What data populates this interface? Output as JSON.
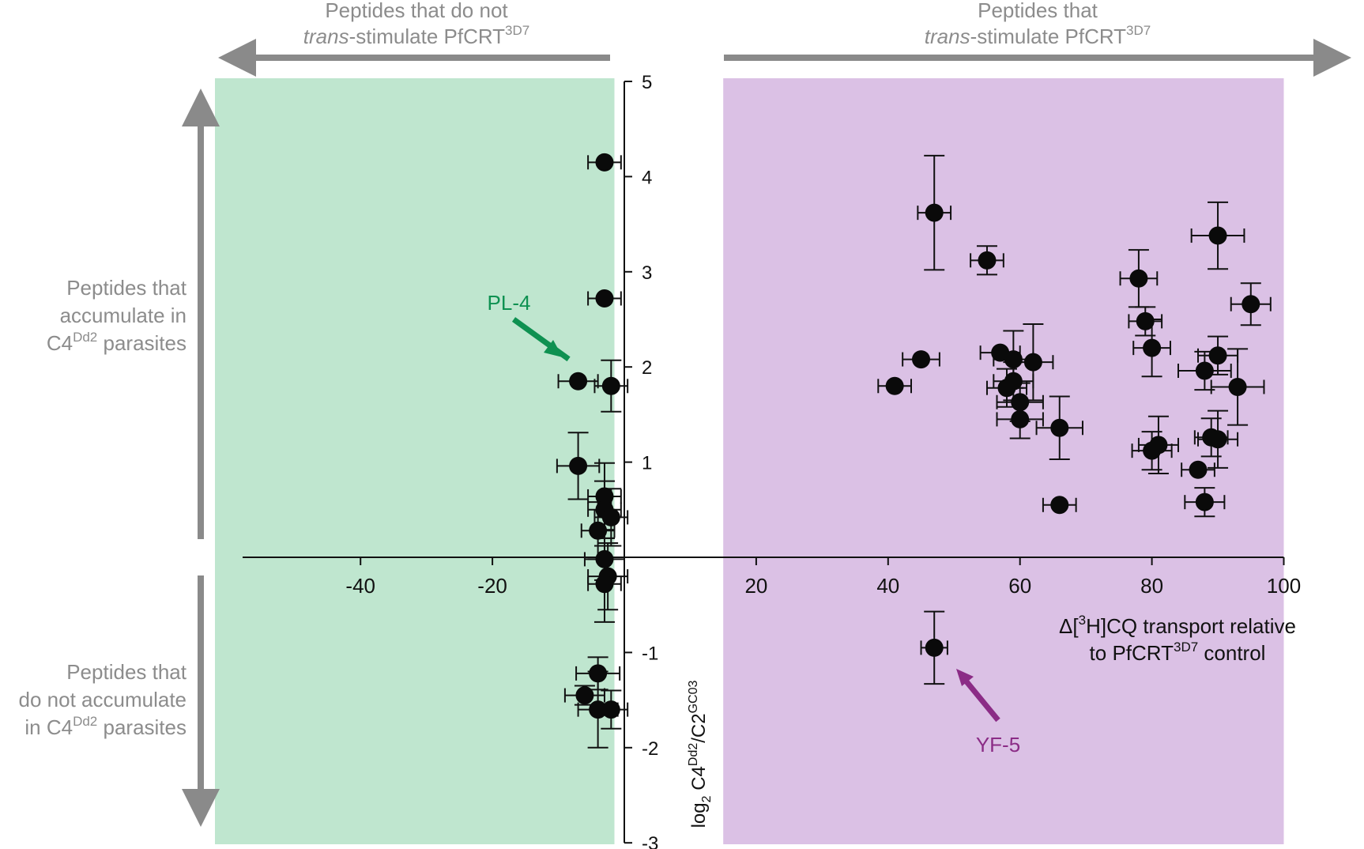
{
  "chart_data": {
    "type": "scatter",
    "title": "",
    "xlabel": {
      "prefix": "Δ[",
      "sup": "3",
      "main": "H]CQ transport relative",
      "line2": "to PfCRT",
      "line2_sup": "3D7",
      "line2_end": " control"
    },
    "ylabel": {
      "base": "log",
      "sub": "2",
      "mid": " C4",
      "sup1": "Dd2",
      "slash": "/C2",
      "sup2": "GC03"
    },
    "xlim": [
      -52,
      100
    ],
    "ylim": [
      -3,
      5
    ],
    "x_ticks": [
      -40,
      -20,
      0,
      20,
      40,
      60,
      80,
      100
    ],
    "x_tick_labels": [
      "-40",
      "-20",
      "",
      "20",
      "40",
      "60",
      "80",
      "100"
    ],
    "y_ticks": [
      -3,
      -2,
      -1,
      1,
      2,
      3,
      4,
      5
    ],
    "y_tick_labels": [
      "-3",
      "-2",
      "-1",
      "1",
      "2",
      "3",
      "4",
      "5"
    ],
    "regions": [
      {
        "name": "no-trans-stimulation",
        "x_range": [
          -52,
          -1.5
        ],
        "color": "#bfe6cf"
      },
      {
        "name": "trans-stimulation",
        "x_range": [
          15,
          100
        ],
        "color": "#dbc1e5"
      }
    ],
    "headers": {
      "left": {
        "line1": "Peptides that do not",
        "line2_italic": "trans",
        "line2": "-stimulate PfCRT",
        "line2_sup": "3D7"
      },
      "right": {
        "line1": "Peptides that",
        "line2_italic": "trans",
        "line2": "-stimulate PfCRT",
        "line2_sup": "3D7"
      }
    },
    "side_labels": {
      "top": [
        "Peptides that",
        "accumulate in",
        "C4",
        "Dd2",
        " parasites"
      ],
      "bottom": [
        "Peptides that",
        "do not accumulate",
        "in C4",
        "Dd2",
        " parasites"
      ]
    },
    "annotations": [
      {
        "label": "PL-4",
        "color": "#0e9151",
        "x": -7,
        "y": 1.85
      },
      {
        "label": "YF-5",
        "color": "#8b2c86",
        "x": 47,
        "y": -0.95
      }
    ],
    "points": [
      {
        "x": -3,
        "y": 4.15,
        "xerr": 2.5,
        "yerr": 0
      },
      {
        "x": -3,
        "y": 2.72,
        "xerr": 2.5,
        "yerr": 0
      },
      {
        "x": -7,
        "y": 1.85,
        "xerr": 3,
        "yerr": 0
      },
      {
        "x": -2,
        "y": 1.8,
        "xerr": 2.5,
        "yerr": 0.27
      },
      {
        "x": -7,
        "y": 0.96,
        "xerr": 3.2,
        "yerr": 0.35
      },
      {
        "x": -3,
        "y": 0.64,
        "xerr": 2.5,
        "yerr": 0.35
      },
      {
        "x": -3,
        "y": 0.5,
        "xerr": 2.5,
        "yerr": 0.3
      },
      {
        "x": -2,
        "y": 0.42,
        "xerr": 2.5,
        "yerr": 0.3
      },
      {
        "x": -4,
        "y": 0.28,
        "xerr": 2.5,
        "yerr": 0.3
      },
      {
        "x": -3,
        "y": -0.02,
        "xerr": 3,
        "yerr": 0.22
      },
      {
        "x": -2.5,
        "y": -0.2,
        "xerr": 3,
        "yerr": 0.35
      },
      {
        "x": -3,
        "y": -0.28,
        "xerr": 2.5,
        "yerr": 0.4
      },
      {
        "x": -4,
        "y": -1.22,
        "xerr": 3.3,
        "yerr": 0.17
      },
      {
        "x": -6,
        "y": -1.45,
        "xerr": 3,
        "yerr": 0.1
      },
      {
        "x": -4,
        "y": -1.6,
        "xerr": 3,
        "yerr": 0.4
      },
      {
        "x": -2,
        "y": -1.6,
        "xerr": 2.5,
        "yerr": 0.2
      },
      {
        "x": 47,
        "y": 3.62,
        "xerr": 2.5,
        "yerr": 0.6
      },
      {
        "x": 55,
        "y": 3.12,
        "xerr": 2.5,
        "yerr": 0.15
      },
      {
        "x": 45,
        "y": 2.08,
        "xerr": 2.8,
        "yerr": 0
      },
      {
        "x": 41,
        "y": 1.8,
        "xerr": 2.5,
        "yerr": 0
      },
      {
        "x": 57,
        "y": 2.15,
        "xerr": 3,
        "yerr": 0
      },
      {
        "x": 59,
        "y": 2.08,
        "xerr": 3,
        "yerr": 0.3
      },
      {
        "x": 62,
        "y": 2.05,
        "xerr": 3,
        "yerr": 0.4
      },
      {
        "x": 58,
        "y": 1.78,
        "xerr": 3,
        "yerr": 0.2
      },
      {
        "x": 59,
        "y": 1.85,
        "xerr": 3,
        "yerr": 0.2
      },
      {
        "x": 60,
        "y": 1.63,
        "xerr": 3.5,
        "yerr": 0.2
      },
      {
        "x": 60,
        "y": 1.45,
        "xerr": 3.5,
        "yerr": 0.2
      },
      {
        "x": 66,
        "y": 1.36,
        "xerr": 3.5,
        "yerr": 0.33
      },
      {
        "x": 66,
        "y": 0.55,
        "xerr": 2.5,
        "yerr": 0
      },
      {
        "x": 78,
        "y": 2.93,
        "xerr": 2.8,
        "yerr": 0.3
      },
      {
        "x": 79,
        "y": 2.48,
        "xerr": 2.5,
        "yerr": 0.15
      },
      {
        "x": 80,
        "y": 2.2,
        "xerr": 2.8,
        "yerr": 0.3
      },
      {
        "x": 80,
        "y": 1.12,
        "xerr": 3,
        "yerr": 0.2
      },
      {
        "x": 81,
        "y": 1.18,
        "xerr": 3,
        "yerr": 0.3
      },
      {
        "x": 90,
        "y": 3.38,
        "xerr": 4,
        "yerr": 0.35
      },
      {
        "x": 95,
        "y": 2.66,
        "xerr": 3,
        "yerr": 0.22
      },
      {
        "x": 90,
        "y": 2.12,
        "xerr": 3,
        "yerr": 0.2
      },
      {
        "x": 88,
        "y": 1.96,
        "xerr": 4,
        "yerr": 0.2
      },
      {
        "x": 93,
        "y": 1.79,
        "xerr": 4,
        "yerr": 0.4
      },
      {
        "x": 89,
        "y": 1.26,
        "xerr": 2.5,
        "yerr": 0.2
      },
      {
        "x": 90,
        "y": 1.24,
        "xerr": 3,
        "yerr": 0.3
      },
      {
        "x": 87,
        "y": 0.92,
        "xerr": 2.5,
        "yerr": 0
      },
      {
        "x": 88,
        "y": 0.58,
        "xerr": 3,
        "yerr": 0.15
      },
      {
        "x": 47,
        "y": -0.95,
        "xerr": 2,
        "yerr": 0.38
      }
    ]
  }
}
